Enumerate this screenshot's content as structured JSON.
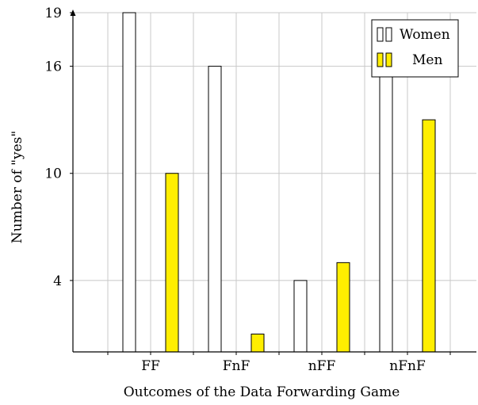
{
  "chart_data": {
    "type": "bar",
    "title": "",
    "xlabel": "Outcomes of the Data Forwarding Game",
    "ylabel": "Number of \"yes\"",
    "categories": [
      "FF",
      "FnF",
      "nFF",
      "nFnF"
    ],
    "series": [
      {
        "name": "Women",
        "values": [
          19,
          16,
          4,
          16
        ],
        "color": "#ffffff"
      },
      {
        "name": "Men",
        "values": [
          10,
          1,
          5,
          13
        ],
        "color": "#ffee00"
      }
    ],
    "ylim": [
      0,
      19
    ],
    "yticks": [
      "4",
      "10",
      "16",
      "19"
    ],
    "grid": true,
    "legend_position": "top-right"
  }
}
